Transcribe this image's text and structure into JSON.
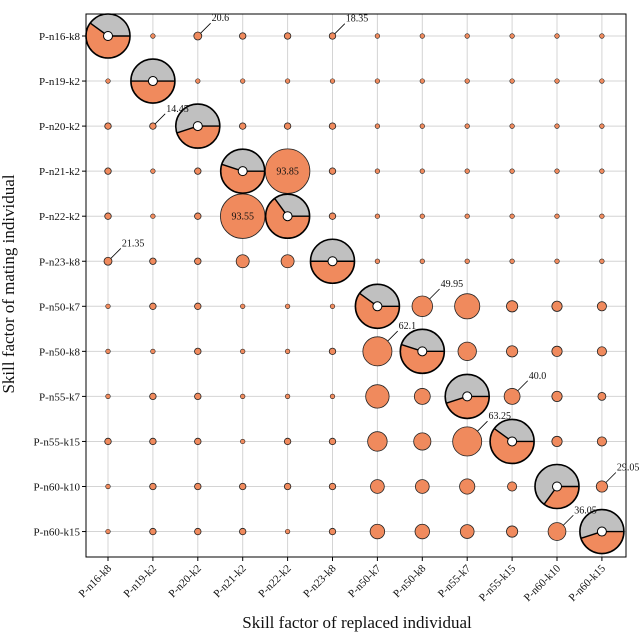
{
  "chart_data": {
    "type": "scatter",
    "subtype": "bubble-matrix",
    "xlabel": "Skill factor of replaced individual",
    "ylabel": "Skill factor of mating individual",
    "categories": [
      "P-n16-k8",
      "P-n19-k2",
      "P-n20-k2",
      "P-n21-k2",
      "P-n22-k2",
      "P-n23-k8",
      "P-n50-k7",
      "P-n50-k8",
      "P-n55-k7",
      "P-n55-k15",
      "P-n60-k10",
      "P-n60-k15"
    ],
    "grid": true,
    "colors": {
      "bubble": "#f08a5d",
      "diag_gray": "#c0c0c0",
      "grid": "#d4d4d4"
    },
    "diagonal_orange_fraction": [
      0.6,
      0.5,
      0.45,
      0.55,
      0.65,
      0.5,
      0.6,
      0.55,
      0.45,
      0.6,
      0.35,
      0.45
    ],
    "sizes": [
      [
        0,
        1,
        3,
        2,
        2,
        2,
        1,
        1,
        1,
        1,
        1,
        1
      ],
      [
        1,
        0,
        1,
        1,
        1,
        1,
        1,
        1,
        1,
        1,
        1,
        1
      ],
      [
        2,
        2,
        0,
        2,
        2,
        2,
        1,
        1,
        1,
        1,
        1,
        1
      ],
      [
        2,
        1,
        2,
        0,
        93.85,
        2,
        1,
        1,
        1,
        1,
        1,
        1
      ],
      [
        2,
        1,
        2,
        93.55,
        0,
        2,
        1,
        1,
        1,
        1,
        1,
        1
      ],
      [
        3,
        2,
        2,
        8,
        8,
        0,
        1,
        1,
        1,
        1,
        1,
        1
      ],
      [
        1,
        2,
        2,
        1,
        1,
        1,
        0,
        20,
        30,
        6,
        5,
        4
      ],
      [
        1,
        1,
        2,
        1,
        1,
        2,
        40,
        0,
        16,
        6,
        5,
        4
      ],
      [
        1,
        2,
        2,
        1,
        1,
        1,
        26,
        12,
        0,
        12,
        5,
        3
      ],
      [
        2,
        2,
        2,
        1,
        2,
        2,
        18,
        14,
        40,
        0,
        5,
        4
      ],
      [
        1,
        2,
        2,
        2,
        2,
        2,
        9,
        9,
        11,
        4,
        0,
        6
      ],
      [
        1,
        2,
        2,
        2,
        1,
        2,
        10,
        10,
        9,
        6,
        15,
        0
      ]
    ],
    "annotations": [
      {
        "row": 0,
        "col": 2,
        "text": "20.6"
      },
      {
        "row": 0,
        "col": 5,
        "text": "18.35"
      },
      {
        "row": 2,
        "col": 1,
        "text": "14.45"
      },
      {
        "row": 5,
        "col": 0,
        "text": "21.35"
      },
      {
        "row": 6,
        "col": 7,
        "text": "49.95"
      },
      {
        "row": 7,
        "col": 6,
        "text": "62.1"
      },
      {
        "row": 8,
        "col": 9,
        "text": "40.0"
      },
      {
        "row": 9,
        "col": 8,
        "text": "63.25"
      },
      {
        "row": 10,
        "col": 11,
        "text": "29.05"
      },
      {
        "row": 11,
        "col": 10,
        "text": "36.05"
      }
    ],
    "inside_labels": [
      {
        "row": 3,
        "col": 4,
        "text": "93.85"
      },
      {
        "row": 4,
        "col": 3,
        "text": "93.55"
      }
    ]
  }
}
